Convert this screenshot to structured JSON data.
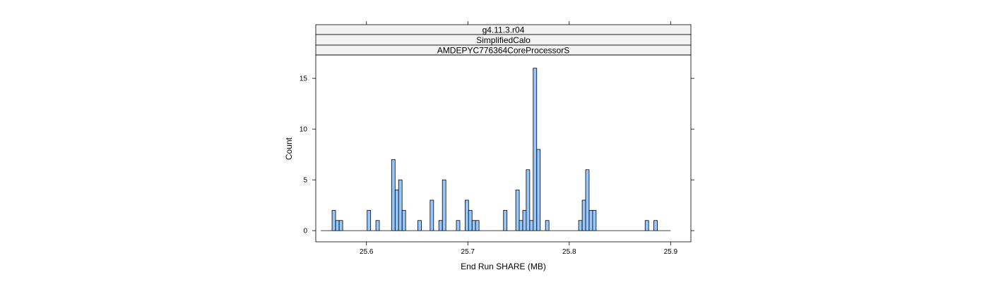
{
  "chart_data": {
    "type": "bar",
    "strips": [
      "g4.11.3.r04",
      "SimplifiedCalo",
      "AMDEPYC776364CoreProcessorS"
    ],
    "xlabel": "End Run SHARE (MB)",
    "ylabel": "Count",
    "xlim": [
      25.55,
      25.92
    ],
    "ylim": [
      -1.1,
      17.3
    ],
    "baseline_range": [
      25.555,
      25.9
    ],
    "x_ticks": [
      25.6,
      25.7,
      25.8,
      25.9
    ],
    "x_tick_labels": [
      "25.6",
      "25.7",
      "25.8",
      "25.9"
    ],
    "y_ticks": [
      0,
      5,
      10,
      15
    ],
    "y_tick_labels": [
      "0",
      "5",
      "10",
      "15"
    ],
    "bin_width": 0.00345,
    "bins": [
      {
        "x": 25.5678,
        "count": 2
      },
      {
        "x": 25.5713,
        "count": 1
      },
      {
        "x": 25.5748,
        "count": 1
      },
      {
        "x": 25.6024,
        "count": 2
      },
      {
        "x": 25.611,
        "count": 1
      },
      {
        "x": 25.6265,
        "count": 7
      },
      {
        "x": 25.63,
        "count": 4
      },
      {
        "x": 25.6334,
        "count": 5
      },
      {
        "x": 25.6369,
        "count": 2
      },
      {
        "x": 25.6524,
        "count": 1
      },
      {
        "x": 25.6645,
        "count": 3
      },
      {
        "x": 25.6731,
        "count": 1
      },
      {
        "x": 25.6766,
        "count": 5
      },
      {
        "x": 25.6904,
        "count": 1
      },
      {
        "x": 25.699,
        "count": 3
      },
      {
        "x": 25.7024,
        "count": 2
      },
      {
        "x": 25.7059,
        "count": 1
      },
      {
        "x": 25.7093,
        "count": 1
      },
      {
        "x": 25.7369,
        "count": 2
      },
      {
        "x": 25.749,
        "count": 4
      },
      {
        "x": 25.7524,
        "count": 1
      },
      {
        "x": 25.7559,
        "count": 2
      },
      {
        "x": 25.7593,
        "count": 6
      },
      {
        "x": 25.7628,
        "count": 1
      },
      {
        "x": 25.7662,
        "count": 16
      },
      {
        "x": 25.7697,
        "count": 8
      },
      {
        "x": 25.7783,
        "count": 1
      },
      {
        "x": 25.811,
        "count": 1
      },
      {
        "x": 25.8145,
        "count": 3
      },
      {
        "x": 25.8179,
        "count": 6
      },
      {
        "x": 25.8214,
        "count": 2
      },
      {
        "x": 25.8248,
        "count": 2
      },
      {
        "x": 25.8766,
        "count": 1
      },
      {
        "x": 25.8852,
        "count": 1
      }
    ],
    "colors": {
      "bar_fill": "#96c8ff",
      "bar_stroke": "#000000",
      "strip_fill": "#f2f2f2",
      "frame": "#000000"
    }
  }
}
